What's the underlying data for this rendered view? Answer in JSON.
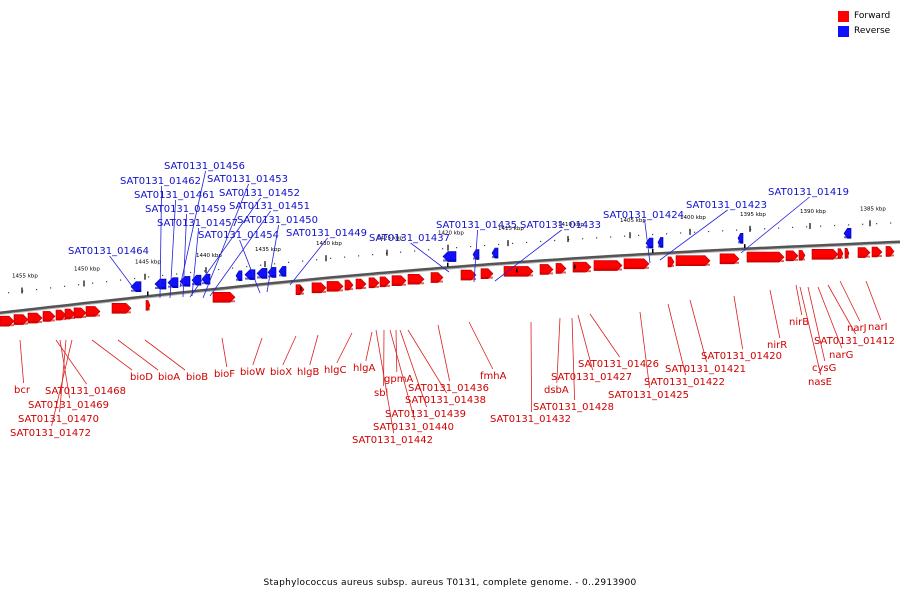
{
  "legend": [
    {
      "label": "Forward",
      "color": "#ff0000"
    },
    {
      "label": "Reverse",
      "color": "#1010ff"
    }
  ],
  "footer": "Staphylococcus aureus subsp. aureus T0131, complete genome. - 0..2913900",
  "axis_ticks": [
    "1455 kbp",
    "1450 kbp",
    "1445 kbp",
    "1440 kbp",
    "1435 kbp",
    "1430 kbp",
    "1425 kbp",
    "1420 kbp",
    "1415 kbp",
    "1410 kbp",
    "1405 kbp",
    "1400 kbp",
    "1395 kbp",
    "1390 kbp",
    "1385 kbp"
  ],
  "reverse_labels": [
    "SAT0131_01456",
    "SAT0131_01462",
    "SAT0131_01453",
    "SAT0131_01461",
    "SAT0131_01452",
    "SAT0131_01459",
    "SAT0131_01451",
    "SAT0131_01457",
    "SAT0131_01450",
    "SAT0131_01454",
    "SAT0131_01449",
    "SAT0131_01464",
    "SAT0131_01435",
    "SAT0131_01433",
    "SAT0131_01437",
    "SAT0131_01424",
    "SAT0131_01423",
    "SAT0131_01419"
  ],
  "forward_labels": [
    "bcr",
    "SAT0131_01468",
    "SAT0131_01469",
    "SAT0131_01470",
    "SAT0131_01472",
    "bioD",
    "bioA",
    "bioB",
    "bioF",
    "bioW",
    "bioX",
    "hlgB",
    "hlgC",
    "hlgA",
    "gpmA",
    "sbi",
    "SAT0131_01438",
    "SAT0131_01439",
    "SAT0131_01440",
    "SAT0131_01442",
    "SAT0131_01436",
    "fmhA",
    "SAT0131_01432",
    "dsbA",
    "SAT0131_01428",
    "SAT0131_01427",
    "SAT0131_01426",
    "SAT0131_01425",
    "SAT0131_01422",
    "SAT0131_01421",
    "SAT0131_01420",
    "nirR",
    "nirB",
    "cysG",
    "nasE",
    "narG",
    "SAT0131_01412",
    "narJ",
    "narI"
  ]
}
